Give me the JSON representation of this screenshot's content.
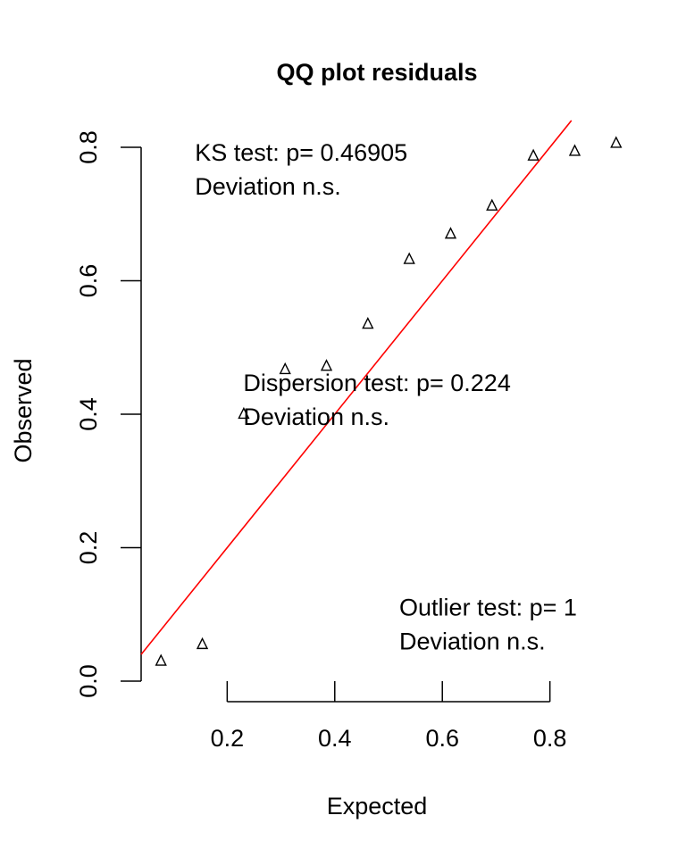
{
  "chart_data": {
    "type": "scatter",
    "title": "QQ plot residuals",
    "xlabel": "Expected",
    "ylabel": "Observed",
    "xlim": [
      0.04,
      0.96
    ],
    "ylim": [
      0.0,
      0.82
    ],
    "x_ticks": [
      0.2,
      0.4,
      0.6,
      0.8
    ],
    "x_tick_labels": [
      "0.2",
      "0.4",
      "0.6",
      "0.8"
    ],
    "y_ticks": [
      0.0,
      0.2,
      0.4,
      0.6,
      0.8
    ],
    "y_tick_labels": [
      "0.0",
      "0.2",
      "0.4",
      "0.6",
      "0.8"
    ],
    "grid": false,
    "series": [
      {
        "marker": "triangle-open",
        "color": "#000000",
        "x": [
          0.0769,
          0.1538,
          0.2308,
          0.3077,
          0.3846,
          0.4615,
          0.5385,
          0.6154,
          0.6923,
          0.7692,
          0.8462,
          0.9231
        ],
        "y": [
          0.03,
          0.055,
          0.4,
          0.467,
          0.472,
          0.535,
          0.632,
          0.67,
          0.712,
          0.787,
          0.794,
          0.806
        ]
      }
    ],
    "reference_line": {
      "x": [
        0.04,
        0.84
      ],
      "y": [
        0.04,
        0.84
      ],
      "color": "#ff0000"
    },
    "annotations": [
      {
        "id": "ks",
        "x": 0.14,
        "y": 0.78,
        "lines": [
          "KS test: p= 0.46905",
          "Deviation  n.s."
        ]
      },
      {
        "id": "dispersion",
        "x": 0.23,
        "y": 0.435,
        "lines": [
          "Dispersion test: p= 0.224",
          "Deviation  n.s."
        ]
      },
      {
        "id": "outlier",
        "x": 0.52,
        "y": 0.098,
        "lines": [
          "Outlier test: p= 1",
          "Deviation  n.s."
        ]
      }
    ]
  }
}
